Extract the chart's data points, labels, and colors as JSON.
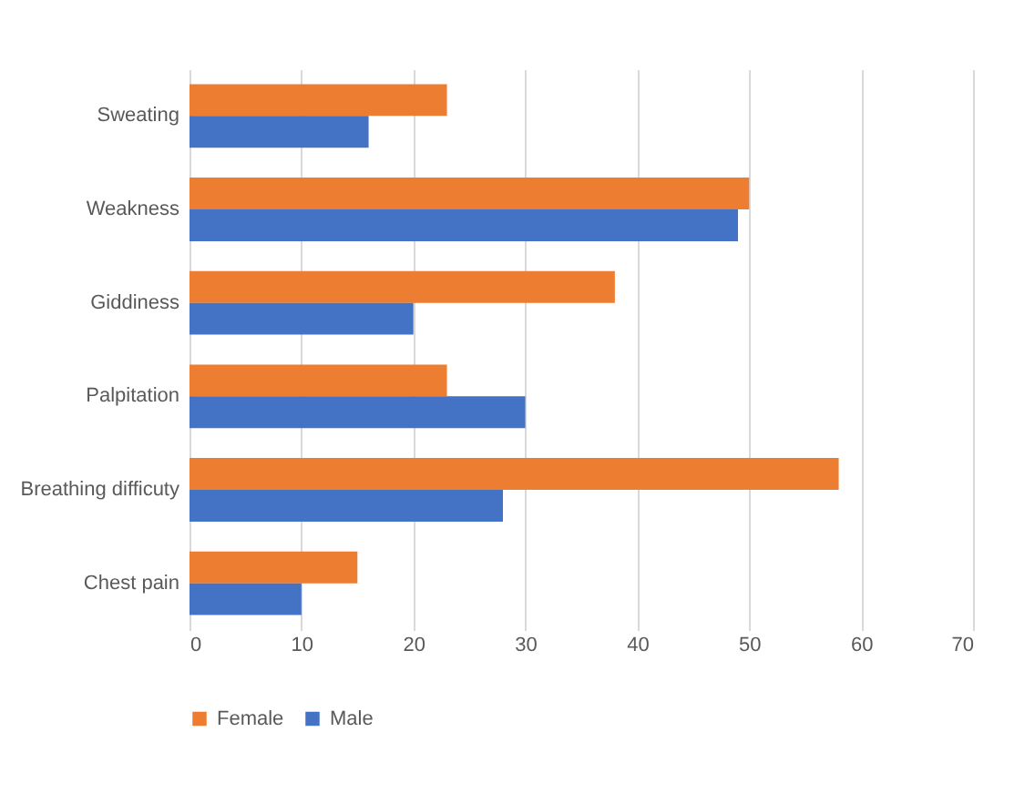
{
  "chart_data": {
    "type": "bar",
    "orientation": "horizontal",
    "categories": [
      "Sweating",
      "Weakness",
      "Giddiness",
      "Palpitation",
      "Breathing difficuty",
      "Chest pain"
    ],
    "series": [
      {
        "name": "Female",
        "color": "#ed7d31",
        "values": [
          23,
          50,
          38,
          23,
          58,
          15
        ]
      },
      {
        "name": "Male",
        "color": "#4472c4",
        "values": [
          16,
          49,
          20,
          30,
          28,
          10
        ]
      }
    ],
    "xlim": [
      0,
      70
    ],
    "xticks": [
      0,
      10,
      20,
      30,
      40,
      50,
      60,
      70
    ],
    "grid": "x",
    "legend": "bottom"
  }
}
